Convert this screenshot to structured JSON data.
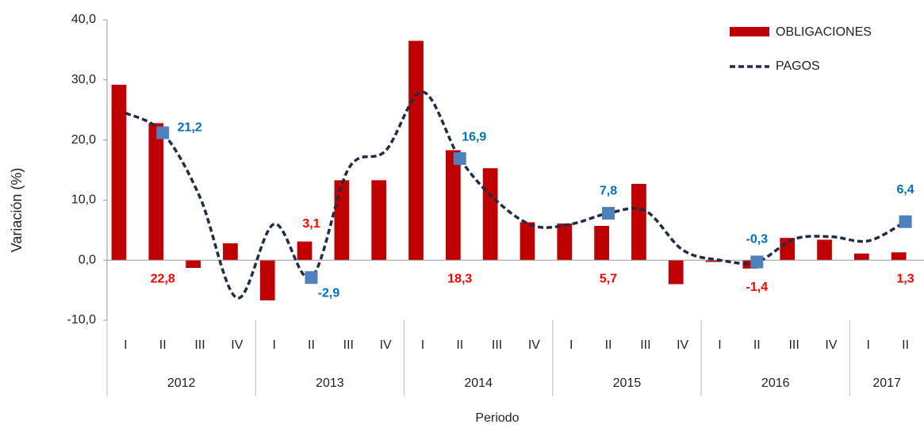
{
  "chart_data": {
    "type": "bar-line",
    "y_label": "Variación (%)",
    "x_label": "Periodo",
    "categories": [
      "I",
      "II",
      "III",
      "IV",
      "I",
      "II",
      "III",
      "IV",
      "I",
      "II",
      "III",
      "IV",
      "I",
      "II",
      "III",
      "IV",
      "I",
      "II",
      "III",
      "IV",
      "I",
      "II"
    ],
    "x_groups": [
      {
        "name": "2012",
        "count": 4
      },
      {
        "name": "2013",
        "count": 4
      },
      {
        "name": "2014",
        "count": 4
      },
      {
        "name": "2015",
        "count": 4
      },
      {
        "name": "2016",
        "count": 4
      },
      {
        "name": "2017",
        "count": 2
      }
    ],
    "series": [
      {
        "name": "OBLIGACIONES",
        "type": "bar",
        "color": "#c00000",
        "label_color": "#ff0000",
        "values": [
          29.2,
          22.8,
          -1.3,
          2.8,
          -6.7,
          3.1,
          13.3,
          13.3,
          36.5,
          18.3,
          15.3,
          6.3,
          6.1,
          5.7,
          12.7,
          -4.0,
          -0.3,
          -1.4,
          3.7,
          3.4,
          1.1,
          1.3
        ],
        "value_labels": [
          null,
          "22,8",
          null,
          null,
          null,
          "3,1",
          null,
          null,
          null,
          "18,3",
          null,
          null,
          null,
          "5,7",
          null,
          null,
          null,
          "-1,4",
          null,
          null,
          null,
          "1,3"
        ]
      },
      {
        "name": "PAGOS",
        "type": "line",
        "color": "#1f2d45",
        "marker_color": "#4f81bd",
        "label_color": "#0070c0",
        "values": [
          24.5,
          21.2,
          10.5,
          -6.3,
          6.0,
          -2.9,
          15.2,
          18.2,
          28.0,
          16.9,
          9.8,
          5.7,
          6.0,
          7.8,
          8.2,
          1.7,
          0.0,
          -0.3,
          3.5,
          3.9,
          3.2,
          6.4
        ],
        "value_labels": [
          null,
          "21,2",
          null,
          null,
          null,
          "-2,9",
          null,
          null,
          null,
          "16,9",
          null,
          null,
          null,
          "7,8",
          null,
          null,
          null,
          "-0,3",
          null,
          null,
          null,
          "6,4"
        ]
      }
    ],
    "ylim": [
      -10,
      40
    ],
    "yticks": [
      {
        "value": -10,
        "label": "-10,0"
      },
      {
        "value": 0,
        "label": "0,0"
      },
      {
        "value": 10,
        "label": "10,0"
      },
      {
        "value": 20,
        "label": "20,0"
      },
      {
        "value": 30,
        "label": "30,0"
      },
      {
        "value": 40,
        "label": "40,0"
      }
    ],
    "legend": "top-right"
  }
}
